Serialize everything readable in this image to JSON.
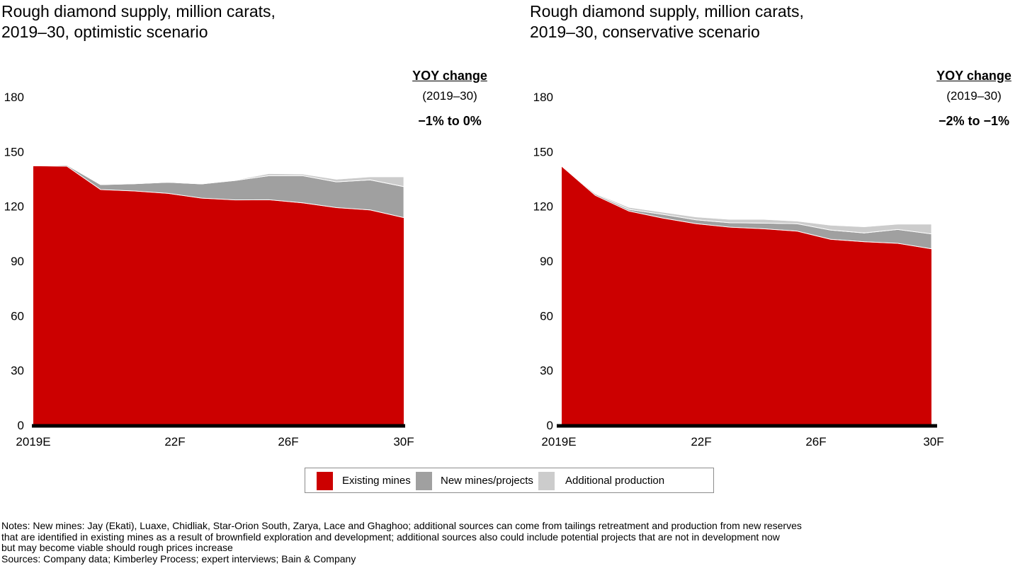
{
  "colors": {
    "existing": "#cc0000",
    "new": "#a0a0a0",
    "additional": "#cccccc",
    "axis": "#000000"
  },
  "chart_data": [
    {
      "type": "area",
      "stacked": true,
      "title": "Rough diamond supply, million carats,\n2019–30, optimistic scenario",
      "xlabel": "",
      "ylabel": "",
      "ylim": [
        0,
        180
      ],
      "yticks": [
        0,
        30,
        60,
        90,
        120,
        150,
        180
      ],
      "x": [
        "2019E",
        "2020",
        "2021",
        "2022F",
        "2023",
        "2024",
        "2025",
        "2026F",
        "2027",
        "2028",
        "2029",
        "2030F"
      ],
      "xtick_labels": [
        {
          "index": 0,
          "label": "2019E"
        },
        {
          "index": 3,
          "label": "22F"
        },
        {
          "index": 7,
          "label": "26F"
        },
        {
          "index": 11,
          "label": "30F"
        }
      ],
      "series": [
        {
          "name": "Existing mines",
          "values": [
            142.2,
            142.0,
            129.2,
            128.4,
            127.1,
            124.5,
            123.5,
            123.6,
            121.9,
            119.3,
            118.0,
            113.8
          ]
        },
        {
          "name": "New mines/projects",
          "values": [
            0.0,
            0.6,
            2.7,
            4.0,
            6.1,
            7.8,
            10.7,
            13.2,
            14.9,
            14.1,
            16.5,
            17.0
          ]
        },
        {
          "name": "Additional production",
          "values": [
            0.0,
            0.0,
            0.0,
            0.0,
            0.0,
            0.0,
            0.3,
            1.2,
            0.9,
            1.5,
            1.7,
            5.4
          ]
        }
      ],
      "annotation": {
        "header": "YOY change",
        "period": "(2019–30)",
        "value": "−1% to 0%"
      },
      "legend_position": "bottom"
    },
    {
      "type": "area",
      "stacked": true,
      "title": "Rough diamond supply, million carats,\n2019–30, conservative scenario",
      "xlabel": "",
      "ylabel": "",
      "ylim": [
        0,
        180
      ],
      "yticks": [
        0,
        30,
        60,
        90,
        120,
        150,
        180
      ],
      "x": [
        "2019E",
        "2020",
        "2021",
        "2022F",
        "2023",
        "2024",
        "2025",
        "2026F",
        "2027",
        "2028",
        "2029",
        "2030F"
      ],
      "xtick_labels": [
        {
          "index": 0,
          "label": "2019E"
        },
        {
          "index": 3,
          "label": "22F"
        },
        {
          "index": 7,
          "label": "26F"
        },
        {
          "index": 11,
          "label": "30F"
        }
      ],
      "series": [
        {
          "name": "Existing mines",
          "values": [
            142.0,
            126.0,
            117.4,
            113.6,
            110.5,
            108.6,
            107.7,
            106.4,
            101.9,
            100.6,
            99.7,
            96.7
          ]
        },
        {
          "name": "New mines/projects",
          "values": [
            0.0,
            0.8,
            0.9,
            2.0,
            2.1,
            2.4,
            3.1,
            4.1,
            5.1,
            4.8,
            7.6,
            8.2
          ]
        },
        {
          "name": "Additional production",
          "values": [
            0.0,
            0.4,
            1.2,
            1.2,
            1.6,
            1.9,
            2.1,
            1.4,
            2.7,
            3.4,
            3.0,
            5.4
          ]
        }
      ],
      "annotation": {
        "header": "YOY change",
        "period": "(2019–30)",
        "value": "−2% to −1%"
      },
      "legend_position": "bottom"
    }
  ],
  "legend": [
    {
      "label": "Existing mines",
      "color": "#cc0000"
    },
    {
      "label": "New mines/projects",
      "color": "#a0a0a0"
    },
    {
      "label": "Additional production",
      "color": "#cccccc"
    }
  ],
  "notes": "Notes: New mines: Jay (Ekati), Luaxe, Chidliak, Star-Orion South, Zarya, Lace and Ghaghoo; additional sources can come from tailings retreatment and production from new reserves\nthat are identified in existing mines as a result of brownfield exploration and development; additional sources also could include potential projects that are not in development now\nbut may become viable should rough prices increase",
  "sources": "Sources: Company data; Kimberley Process; expert interviews; Bain & Company"
}
